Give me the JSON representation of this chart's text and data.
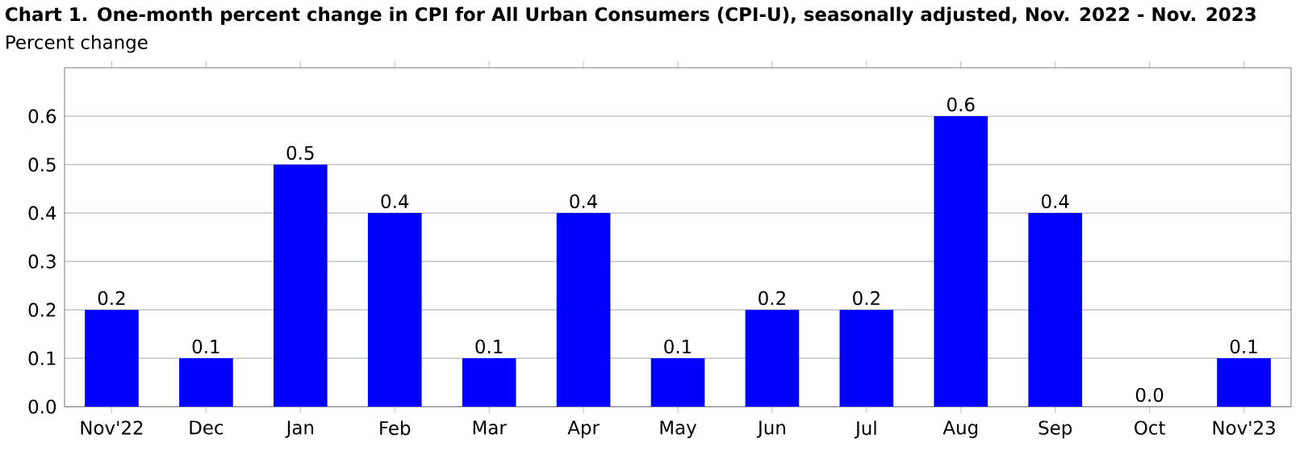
{
  "chart_data": {
    "type": "bar",
    "title": "Chart 1. One-month percent change in CPI for All Urban Consumers (CPI-U), seasonally adjusted, Nov. 2022 - Nov. 2023",
    "ylabel": "Percent change",
    "categories": [
      "Nov'22",
      "Dec",
      "Jan",
      "Feb",
      "Mar",
      "Apr",
      "May",
      "Jun",
      "Jul",
      "Aug",
      "Sep",
      "Oct",
      "Nov'23"
    ],
    "values": [
      0.2,
      0.1,
      0.5,
      0.4,
      0.1,
      0.4,
      0.1,
      0.2,
      0.2,
      0.6,
      0.4,
      0.0,
      0.1
    ],
    "value_labels": [
      "0.2",
      "0.1",
      "0.5",
      "0.4",
      "0.1",
      "0.4",
      "0.1",
      "0.2",
      "0.2",
      "0.6",
      "0.4",
      "0.0",
      "0.1"
    ],
    "color": "#0000ff",
    "ylim": [
      0,
      0.7
    ],
    "yticks": [
      {
        "value": 0,
        "label": "0.0"
      },
      0.1,
      0.2,
      0.3,
      0.4,
      0.5,
      0.6
    ],
    "grid": "y"
  }
}
